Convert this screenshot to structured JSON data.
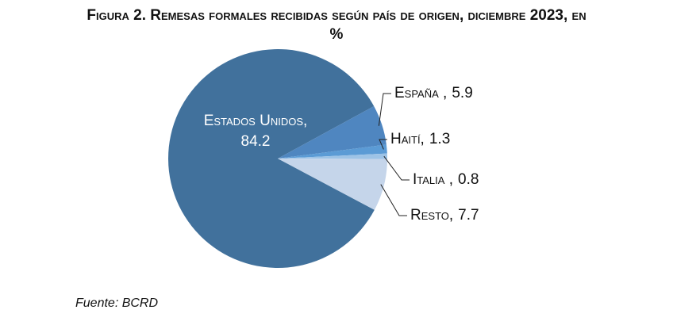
{
  "chart_data": {
    "type": "pie",
    "title": "Figura 2. Remesas formales recibidas según país de origen, diciembre 2023, en %",
    "categories": [
      "Estados Unidos,",
      "España ,",
      "Haití,",
      "Italia ,",
      "Resto,"
    ],
    "values": [
      84.2,
      5.9,
      1.3,
      0.8,
      7.7
    ],
    "colors": [
      "#41719c",
      "#4f86c0",
      "#5b9bd5",
      "#9dc3e6",
      "#c5d5ea"
    ],
    "source": "Fuente: BCRD"
  }
}
